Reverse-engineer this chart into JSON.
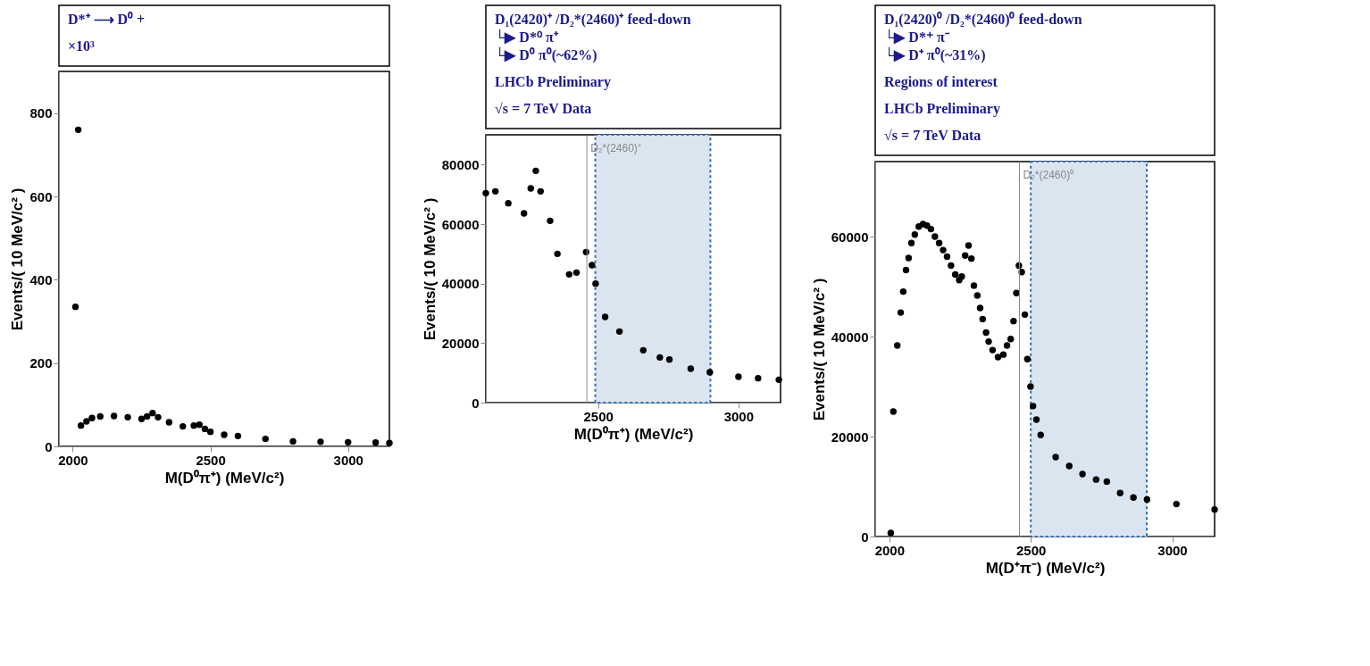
{
  "chart_data": [
    {
      "type": "scatter",
      "xlabel": "M(D⁰π⁺) (MeV/c²)",
      "ylabel": "Events/( 10 MeV/c² )",
      "xlim": [
        1950,
        3150
      ],
      "xticks": [
        2000,
        2500,
        3000
      ],
      "ylim": [
        0,
        900
      ],
      "yticks": [
        0,
        200,
        400,
        600,
        800
      ],
      "marker": "circle",
      "grid": false,
      "annotations": [
        "D*⁺ ⟶ D⁰ +",
        "×10³"
      ],
      "series": [
        {
          "color": "#000000",
          "x": [
            2010,
            2020,
            2030,
            2050,
            2070,
            2100,
            2150,
            2200,
            2250,
            2270,
            2290,
            2310,
            2350,
            2400,
            2440,
            2460,
            2480,
            2500,
            2550,
            2600,
            2700,
            2800,
            2900,
            3000,
            3100,
            3150
          ],
          "values": [
            335,
            760,
            50,
            60,
            68,
            72,
            73,
            70,
            66,
            72,
            80,
            70,
            58,
            48,
            50,
            52,
            42,
            35,
            28,
            25,
            18,
            12,
            11,
            10,
            9,
            8
          ]
        }
      ]
    },
    {
      "type": "scatter",
      "xlabel": "M(D⁰π⁺) (MeV/c²)",
      "ylabel": "Events/( 10 MeV/c² )",
      "xlim": [
        2100,
        3150
      ],
      "xticks": [
        2500,
        3000
      ],
      "ylim": [
        0,
        90000
      ],
      "yticks": [
        0,
        20000,
        40000,
        60000,
        80000
      ],
      "marker": "circle",
      "grid": false,
      "annotations": [
        "D₁(2420)⁺ /D₂*(2460)⁺ feed-down\n   └▶ D*⁰ π⁺\n        └▶ D⁰ π⁰(~62%)",
        "LHCb Preliminary",
        "√s = 7 TeV Data"
      ],
      "ref_lines": [
        {
          "axis": "x",
          "value": 2460,
          "label": "D₂*(2460)⁺",
          "color": "#888888"
        }
      ],
      "bands": [
        {
          "axis": "x",
          "from": 2490,
          "to": 2900,
          "color": "#dbe5f0"
        }
      ],
      "series": [
        {
          "color": "#000000",
          "x": [
            2100,
            2134,
            2180,
            2236,
            2260,
            2278,
            2295,
            2329,
            2355,
            2397,
            2423,
            2457,
            2478,
            2491,
            2525,
            2576,
            2661,
            2720,
            2754,
            2830,
            2898,
            3000,
            3070,
            3144
          ],
          "values": [
            70400,
            71000,
            67000,
            63600,
            72000,
            77900,
            71000,
            61100,
            50000,
            43100,
            43700,
            50600,
            46200,
            40000,
            28800,
            23900,
            17600,
            15200,
            14500,
            11400,
            10200,
            8700,
            8200,
            7700
          ]
        }
      ]
    },
    {
      "type": "scatter",
      "xlabel": "M(D⁺π⁻) (MeV/c²)",
      "ylabel": "Events/( 10 MeV/c² )",
      "xlim": [
        1950,
        3150
      ],
      "xticks": [
        2000,
        2500,
        3000
      ],
      "ylim": [
        0,
        75000
      ],
      "yticks": [
        0,
        20000,
        40000,
        60000
      ],
      "marker": "circle",
      "grid": false,
      "annotations": [
        "D₁(2420)⁰ /D₂*(2460)⁰ feed-down\n   └▶ D*⁺ π⁻\n        └▶ D⁺ π⁰(~31%)",
        "Regions of interest",
        "LHCb Preliminary",
        "√s = 7 TeV Data"
      ],
      "ref_lines": [
        {
          "axis": "x",
          "value": 2460,
          "label": "D₂*(2460)⁰",
          "color": "#888888"
        }
      ],
      "bands": [
        {
          "axis": "x",
          "from": 2500,
          "to": 2910,
          "color": "#dbe5f0"
        }
      ],
      "series": [
        {
          "color": "#000000",
          "x": [
            2005,
            2014,
            2028,
            2040,
            2049,
            2059,
            2068,
            2078,
            2090,
            2104,
            2119,
            2133,
            2147,
            2161,
            2176,
            2190,
            2204,
            2218,
            2233,
            2247,
            2256,
            2268,
            2280,
            2290,
            2299,
            2311,
            2321,
            2330,
            2342,
            2351,
            2365,
            2384,
            2403,
            2416,
            2429,
            2439,
            2449,
            2458,
            2468,
            2479,
            2488,
            2499,
            2508,
            2520,
            2535,
            2588,
            2636,
            2683,
            2731,
            2769,
            2816,
            2863,
            2911,
            3015,
            3150
          ],
          "values": [
            700,
            25000,
            38200,
            44800,
            49000,
            53300,
            55700,
            58700,
            60400,
            62000,
            62500,
            62200,
            61500,
            60000,
            58700,
            57300,
            56000,
            54200,
            52400,
            51300,
            52000,
            56200,
            58200,
            55600,
            50200,
            48200,
            45700,
            43500,
            40800,
            39000,
            37300,
            35900,
            36400,
            38200,
            39500,
            43100,
            48700,
            54200,
            52900,
            44400,
            35500,
            30000,
            26100,
            23400,
            20300,
            15900,
            14100,
            12500,
            11400,
            11000,
            8700,
            7800,
            7400,
            6500,
            5400
          ]
        }
      ]
    }
  ]
}
